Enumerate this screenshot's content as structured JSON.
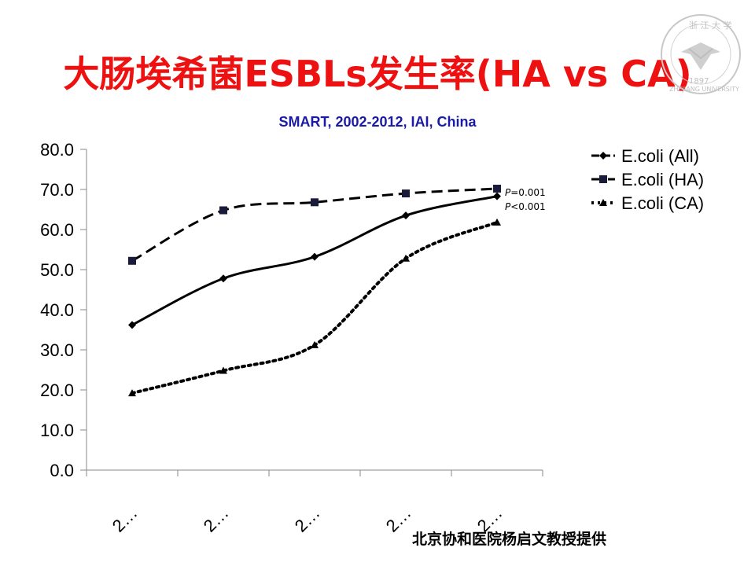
{
  "title": "大肠埃希菌ESBLs发生率(HA vs CA)",
  "subtitle": "SMART, 2002-2012, IAI, China",
  "credit": "北京协和医院杨启文教授提供",
  "logo": {
    "icon": "university-seal-icon",
    "text_top": "浙 江 大 学",
    "year": "1897",
    "text_bottom": "ZHEJIANG UNIVERSITY"
  },
  "colors": {
    "title": "#ee1111",
    "subtitle": "#1a1aa6",
    "series": "#000000"
  },
  "chart_data": {
    "type": "line",
    "categories": [
      "2…",
      "2…",
      "2…",
      "2…",
      "2…"
    ],
    "ylim": [
      0,
      80
    ],
    "yticks": [
      "0.0",
      "10.0",
      "20.0",
      "30.0",
      "40.0",
      "50.0",
      "60.0",
      "70.0",
      "80.0"
    ],
    "legend_position": "right",
    "grid": false,
    "series": [
      {
        "name": "E.coli (All)",
        "values": [
          36.2,
          47.8,
          53.2,
          63.5,
          68.3
        ],
        "marker": "diamond",
        "dash": "solid"
      },
      {
        "name": "E.coli (HA)",
        "values": [
          52.2,
          64.8,
          66.8,
          69.0,
          70.2
        ],
        "marker": "square",
        "dash": "dashed"
      },
      {
        "name": "E.coli (CA)",
        "values": [
          19.2,
          24.8,
          31.2,
          52.8,
          61.8
        ],
        "marker": "triangle",
        "dash": "dotted"
      }
    ],
    "annotations": [
      {
        "italic": "P",
        "text": "=0.001"
      },
      {
        "italic": "P",
        "text": "<0.001"
      }
    ]
  }
}
